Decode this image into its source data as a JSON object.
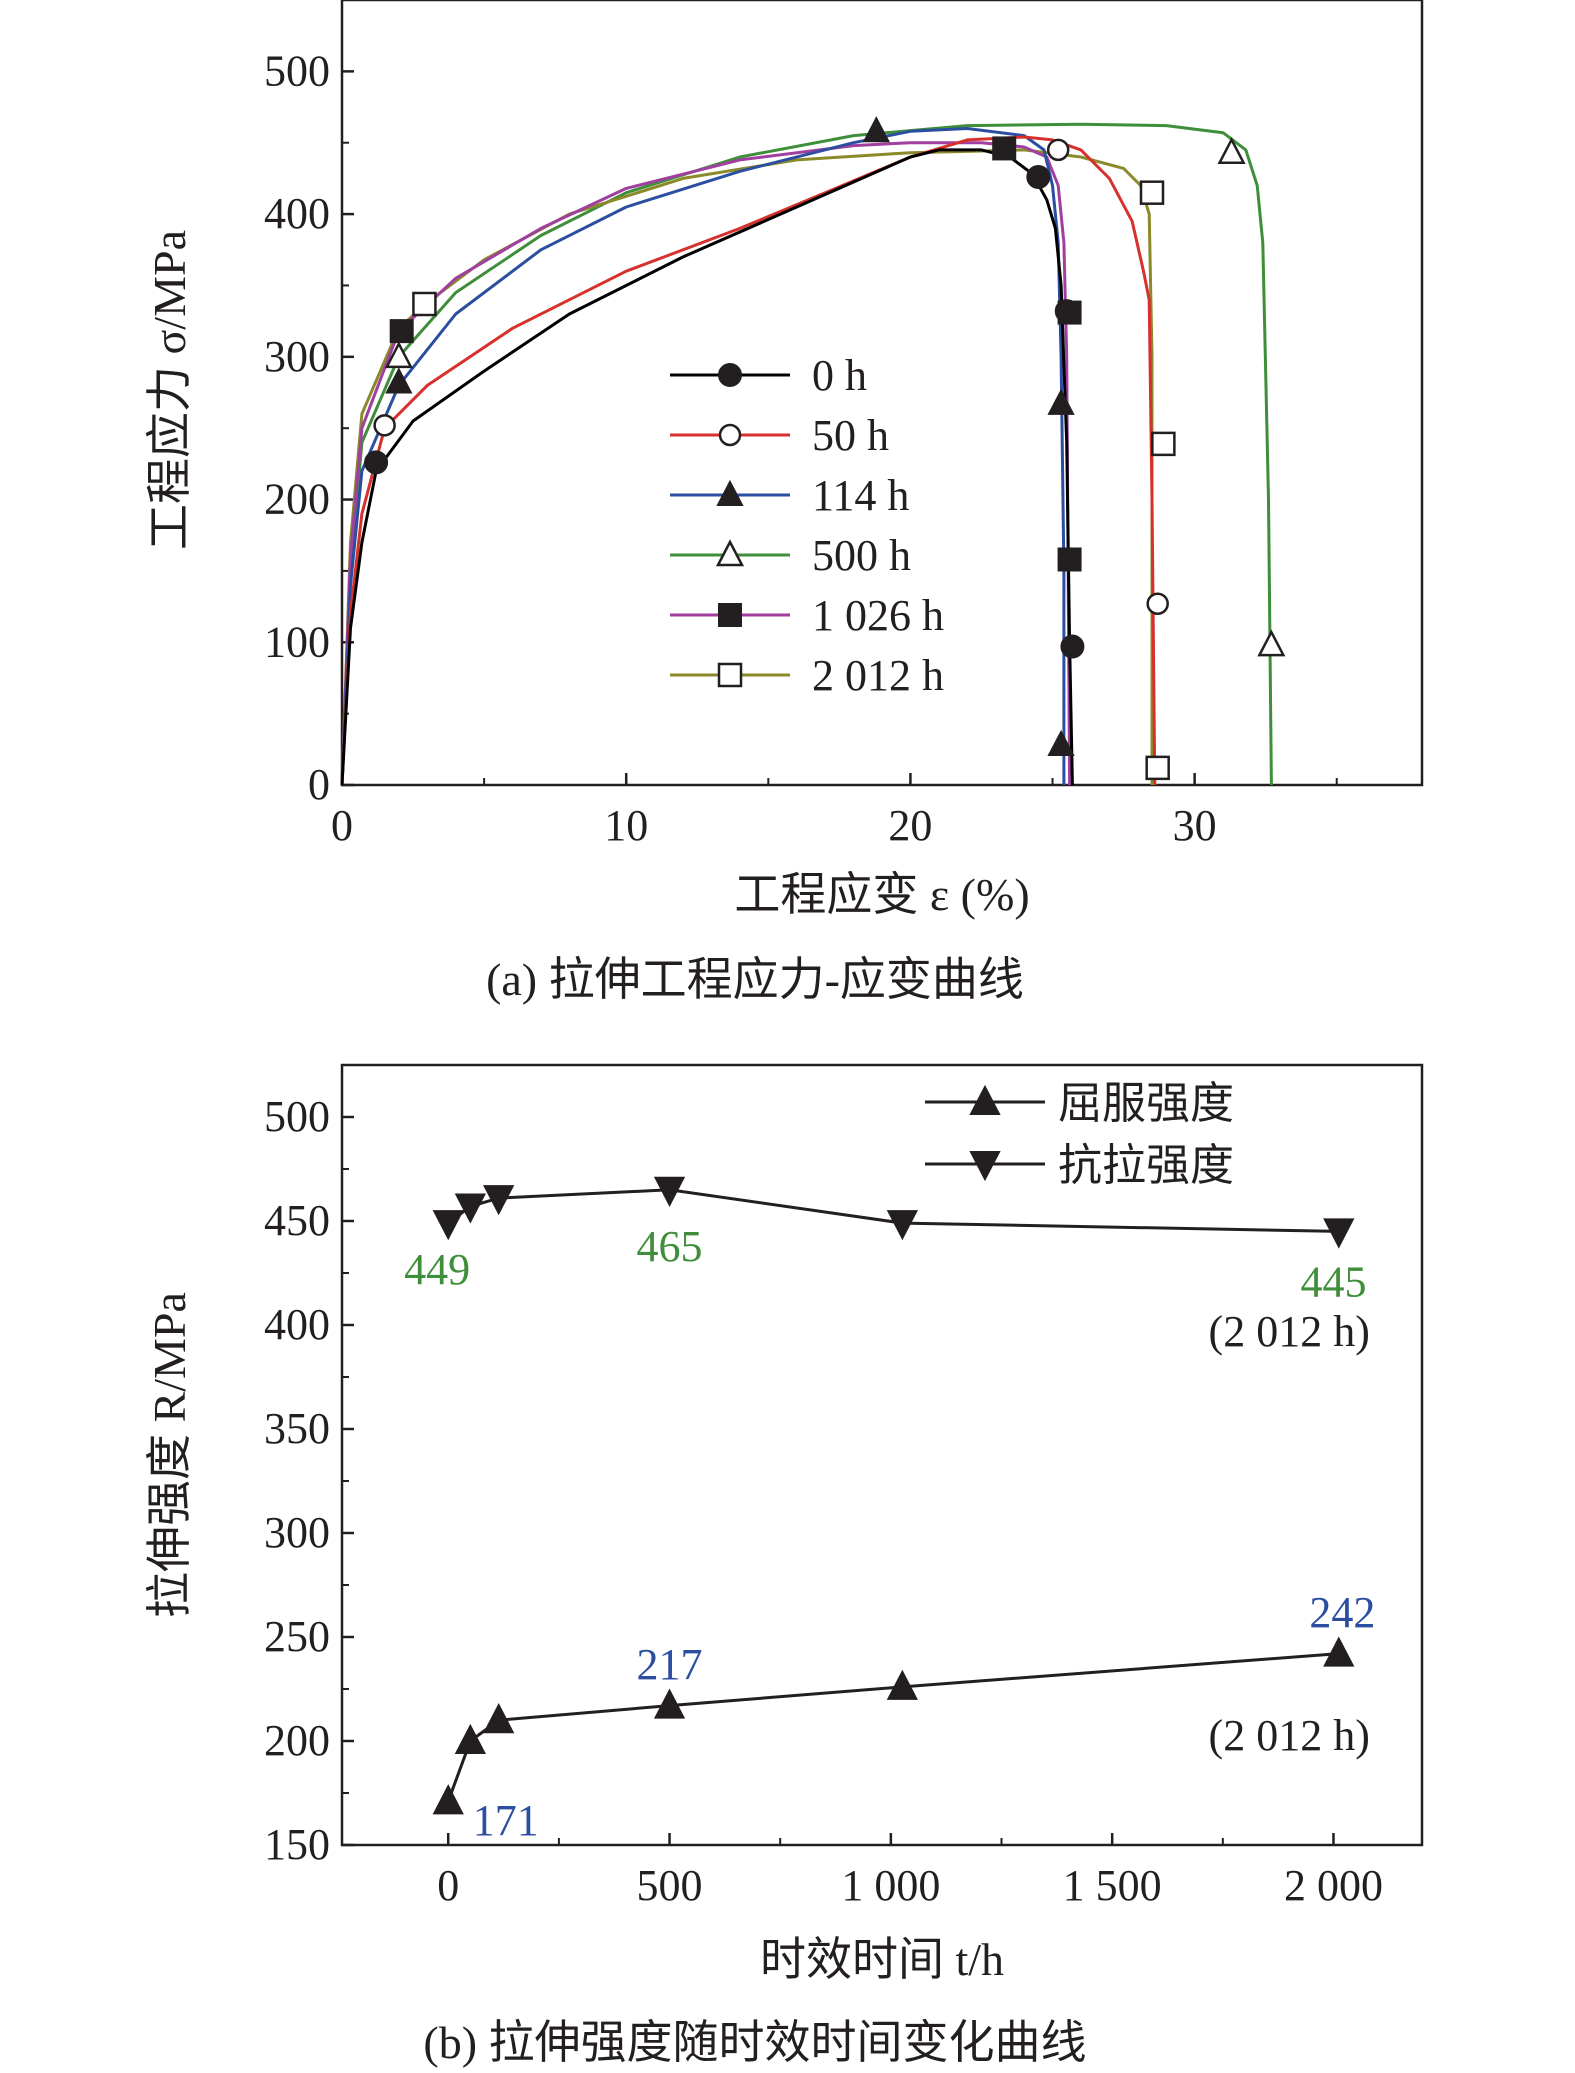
{
  "chart_data": [
    {
      "type": "line",
      "title": "(a) 拉伸工程应力-应变曲线",
      "xlabel": "工程应变 ε (%)",
      "ylabel": "工程应力 σ/MPa",
      "xlim": [
        0,
        38
      ],
      "ylim": [
        0,
        550
      ],
      "xticks": [
        "0",
        "10",
        "20",
        "30"
      ],
      "xtick_values": [
        0,
        10,
        20,
        30
      ],
      "yticks": [
        "0",
        "100",
        "200",
        "300",
        "400",
        "500"
      ],
      "ytick_values": [
        0,
        100,
        200,
        300,
        400,
        500
      ],
      "legend_position": "center",
      "series": [
        {
          "name": "0 h",
          "color": "#000000",
          "marker": "filled-circle",
          "points": [
            [
              0,
              0
            ],
            [
              0.3,
              110
            ],
            [
              0.7,
              170
            ],
            [
              1.2,
              220
            ],
            [
              2.5,
              255
            ],
            [
              5,
              290
            ],
            [
              8,
              330
            ],
            [
              12,
              370
            ],
            [
              16,
              405
            ],
            [
              20,
              440
            ],
            [
              21,
              445
            ],
            [
              22.5,
              445
            ],
            [
              23.5,
              440
            ],
            [
              24.3,
              428
            ],
            [
              24.8,
              410
            ],
            [
              25.1,
              390
            ],
            [
              25.3,
              350
            ],
            [
              25.5,
              240
            ],
            [
              25.6,
              100
            ],
            [
              25.7,
              0
            ]
          ],
          "markers": [
            [
              1.2,
              226
            ],
            [
              24.5,
              426
            ],
            [
              25.5,
              332
            ],
            [
              25.6,
              158
            ],
            [
              25.7,
              97
            ]
          ]
        },
        {
          "name": "50 h",
          "color": "#d7312e",
          "marker": "open-circle",
          "points": [
            [
              0,
              0
            ],
            [
              0.3,
              120
            ],
            [
              0.7,
              190
            ],
            [
              1.5,
              250
            ],
            [
              3,
              280
            ],
            [
              6,
              320
            ],
            [
              10,
              360
            ],
            [
              14,
              390
            ],
            [
              17,
              415
            ],
            [
              20,
              440
            ],
            [
              22,
              452
            ],
            [
              24,
              454
            ],
            [
              25,
              452
            ],
            [
              26,
              445
            ],
            [
              27,
              425
            ],
            [
              27.8,
              395
            ],
            [
              28.2,
              360
            ],
            [
              28.4,
              340
            ],
            [
              28.5,
              200
            ],
            [
              28.6,
              0
            ]
          ],
          "markers": [
            [
              1.5,
              252
            ],
            [
              25.2,
              445
            ],
            [
              28.7,
              127
            ]
          ]
        },
        {
          "name": "114 h",
          "color": "#2c4ea0",
          "marker": "filled-triangle",
          "points": [
            [
              0,
              0
            ],
            [
              0.3,
              140
            ],
            [
              0.7,
              220
            ],
            [
              2,
              280
            ],
            [
              4,
              330
            ],
            [
              7,
              375
            ],
            [
              10,
              405
            ],
            [
              14,
              430
            ],
            [
              18,
              450
            ],
            [
              20,
              458
            ],
            [
              22,
              460
            ],
            [
              24,
              455
            ],
            [
              24.7,
              445
            ],
            [
              25.0,
              420
            ],
            [
              25.2,
              380
            ],
            [
              25.3,
              300
            ],
            [
              25.4,
              150
            ],
            [
              25.4,
              0
            ]
          ],
          "markers": [
            [
              2,
              282
            ],
            [
              18.8,
              458
            ],
            [
              25.3,
              267
            ],
            [
              25.3,
              28
            ]
          ]
        },
        {
          "name": "500 h",
          "color": "#3f8e3a",
          "marker": "open-triangle",
          "points": [
            [
              0,
              0
            ],
            [
              0.3,
              150
            ],
            [
              0.7,
              240
            ],
            [
              2,
              300
            ],
            [
              4,
              345
            ],
            [
              7,
              385
            ],
            [
              10,
              415
            ],
            [
              14,
              440
            ],
            [
              18,
              455
            ],
            [
              22,
              462
            ],
            [
              26,
              463
            ],
            [
              29,
              462
            ],
            [
              31,
              457
            ],
            [
              31.8,
              445
            ],
            [
              32.2,
              420
            ],
            [
              32.4,
              380
            ],
            [
              32.6,
              200
            ],
            [
              32.7,
              0
            ]
          ],
          "markers": [
            [
              2,
              300
            ],
            [
              31.3,
              443
            ],
            [
              32.7,
              98
            ]
          ]
        },
        {
          "name": "1 026 h",
          "color": "#a03fa0",
          "marker": "filled-square",
          "points": [
            [
              0,
              0
            ],
            [
              0.3,
              160
            ],
            [
              0.7,
              250
            ],
            [
              2,
              318
            ],
            [
              4,
              355
            ],
            [
              7,
              390
            ],
            [
              10,
              418
            ],
            [
              14,
              438
            ],
            [
              18,
              448
            ],
            [
              20,
              450
            ],
            [
              22.5,
              450
            ],
            [
              24,
              447
            ],
            [
              24.8,
              440
            ],
            [
              25.2,
              420
            ],
            [
              25.4,
              380
            ],
            [
              25.5,
              300
            ],
            [
              25.6,
              0
            ]
          ],
          "markers": [
            [
              2.1,
              318
            ],
            [
              23.3,
              446
            ],
            [
              25.6,
              331
            ],
            [
              25.6,
              158
            ]
          ]
        },
        {
          "name": "2 012 h",
          "color": "#8a8a2a",
          "marker": "open-square",
          "points": [
            [
              0,
              0
            ],
            [
              0.3,
              170
            ],
            [
              0.7,
              260
            ],
            [
              2,
              320
            ],
            [
              3,
              338
            ],
            [
              5,
              368
            ],
            [
              8,
              400
            ],
            [
              12,
              425
            ],
            [
              16,
              438
            ],
            [
              20,
              443
            ],
            [
              24,
              445
            ],
            [
              26,
              440
            ],
            [
              27.5,
              432
            ],
            [
              28.1,
              420
            ],
            [
              28.4,
              400
            ],
            [
              28.5,
              300
            ],
            [
              28.5,
              0
            ]
          ],
          "markers": [
            [
              2.9,
              337
            ],
            [
              28.5,
              415
            ],
            [
              28.9,
              239
            ],
            [
              28.7,
              12
            ]
          ]
        }
      ]
    },
    {
      "type": "line",
      "title": "(b) 拉伸强度随时效时间变化曲线",
      "xlabel": "时效时间 t/h",
      "ylabel": "拉伸强度 R/MPa",
      "xlim": [
        -240,
        2200
      ],
      "ylim": [
        150,
        525
      ],
      "xticks": [
        "0",
        "500",
        "1 000",
        "1 500",
        "2 000"
      ],
      "xtick_values": [
        0,
        500,
        1000,
        1500,
        2000
      ],
      "yticks": [
        "150",
        "200",
        "250",
        "300",
        "350",
        "400",
        "450",
        "500"
      ],
      "ytick_values": [
        150,
        200,
        250,
        300,
        350,
        400,
        450,
        500
      ],
      "legend_position": "top-right",
      "x": [
        0,
        50,
        114,
        500,
        1026,
        2012
      ],
      "series": [
        {
          "name": "屈服强度",
          "marker": "up-triangle",
          "values": [
            171,
            200,
            210,
            217,
            226,
            242
          ]
        },
        {
          "name": "抗拉强度",
          "marker": "down-triangle",
          "values": [
            449,
            457,
            461,
            465,
            449,
            445
          ]
        }
      ],
      "annotations": [
        {
          "text": "449",
          "x": -25,
          "y": 427,
          "color": "#3f8e3a"
        },
        {
          "text": "465",
          "x": 500,
          "y": 438,
          "color": "#3f8e3a"
        },
        {
          "text": "445",
          "x": 2000,
          "y": 421,
          "color": "#3f8e3a"
        },
        {
          "text": "(2 012 h)",
          "x": 1900,
          "y": 397,
          "color": "#231f20"
        },
        {
          "text": "217",
          "x": 500,
          "y": 237,
          "color": "#2c4ea0"
        },
        {
          "text": "242",
          "x": 2020,
          "y": 262,
          "color": "#2c4ea0"
        },
        {
          "text": "(2 012 h)",
          "x": 1900,
          "y": 203,
          "color": "#231f20"
        },
        {
          "text": "171",
          "x": 130,
          "y": 162,
          "color": "#2c4ea0"
        }
      ]
    }
  ]
}
